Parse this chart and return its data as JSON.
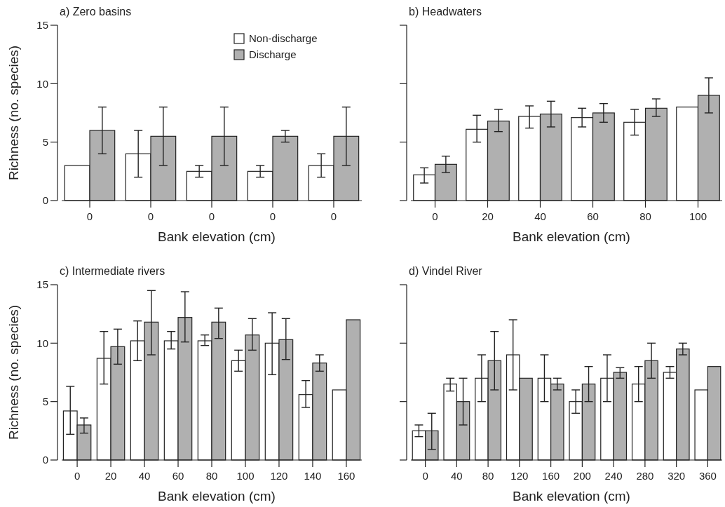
{
  "chart_data": [
    {
      "type": "bar",
      "title": "a) Zero basins",
      "xlabel": "Bank elevation (cm)",
      "ylabel": "Richness (no. species)",
      "categories": [
        "0",
        "0",
        "0",
        "0",
        "0"
      ],
      "ylim": [
        0,
        15
      ],
      "yticks": [
        0,
        5,
        10,
        15
      ],
      "legend": "top",
      "series": [
        {
          "name": "Non-discharge",
          "color": "#ffffff",
          "values": [
            3,
            4,
            2.5,
            2.5,
            3
          ],
          "errors": [
            null,
            [
              2,
              6
            ],
            [
              2,
              3
            ],
            [
              2,
              3
            ],
            [
              2,
              4
            ]
          ]
        },
        {
          "name": "Discharge",
          "color": "#b0b0b0",
          "values": [
            6,
            5.5,
            5.5,
            5.5,
            5.5
          ],
          "errors": [
            [
              4,
              8
            ],
            [
              3,
              8
            ],
            [
              3,
              8
            ],
            [
              5,
              6
            ],
            [
              3,
              8
            ]
          ]
        }
      ]
    },
    {
      "type": "bar",
      "title": "b) Headwaters",
      "xlabel": "Bank elevation (cm)",
      "categories": [
        "0",
        "20",
        "40",
        "60",
        "80",
        "100"
      ],
      "ylim": [
        0,
        15
      ],
      "yticks": [
        0,
        5,
        10,
        15
      ],
      "tick_labels": "x",
      "series": [
        {
          "color": "#ffffff",
          "values": [
            2.2,
            6.1,
            7.2,
            7.1,
            6.7,
            8
          ],
          "errors": [
            [
              1.5,
              2.8
            ],
            [
              5,
              7.3
            ],
            [
              6.2,
              8.1
            ],
            [
              6.3,
              7.9
            ],
            [
              5.6,
              7.8
            ],
            null
          ]
        },
        {
          "color": "#b0b0b0",
          "values": [
            3.1,
            6.8,
            7.4,
            7.5,
            7.9,
            9
          ],
          "errors": [
            [
              2.4,
              3.8
            ],
            [
              5.9,
              7.8
            ],
            [
              6.3,
              8.5
            ],
            [
              6.7,
              8.3
            ],
            [
              7.2,
              8.7
            ],
            [
              7.5,
              10.5
            ]
          ]
        }
      ]
    },
    {
      "type": "bar",
      "title": "c) Intermediate rivers",
      "xlabel": "Bank elevation (cm)",
      "ylabel": "Richness (no. species)",
      "categories": [
        "0",
        "20",
        "40",
        "60",
        "80",
        "100",
        "120",
        "140",
        "160"
      ],
      "ylim": [
        0,
        15
      ],
      "yticks": [
        0,
        5,
        10,
        15
      ],
      "series": [
        {
          "color": "#ffffff",
          "values": [
            4.2,
            8.7,
            10.2,
            10.2,
            10.2,
            8.5,
            10,
            5.6,
            6
          ],
          "errors": [
            [
              2.2,
              6.3
            ],
            [
              6.5,
              11
            ],
            [
              8.5,
              11.9
            ],
            [
              9.5,
              11
            ],
            [
              9.8,
              10.7
            ],
            [
              7.6,
              9.4
            ],
            [
              7.3,
              12.6
            ],
            [
              4.5,
              6.8
            ],
            null
          ]
        },
        {
          "color": "#b0b0b0",
          "values": [
            3,
            9.7,
            11.8,
            12.2,
            11.8,
            10.7,
            10.3,
            8.3,
            12
          ],
          "errors": [
            [
              2.3,
              3.6
            ],
            [
              8.2,
              11.2
            ],
            [
              9,
              14.5
            ],
            [
              10.1,
              14.4
            ],
            [
              10.4,
              13
            ],
            [
              9.4,
              12.1
            ],
            [
              8.6,
              12.1
            ],
            [
              7.6,
              9
            ],
            null
          ]
        }
      ]
    },
    {
      "type": "bar",
      "title": "d) Vindel River",
      "xlabel": "Bank elevation (cm)",
      "categories": [
        "0",
        "40",
        "80",
        "120",
        "160",
        "200",
        "240",
        "280",
        "320",
        "360"
      ],
      "ylim": [
        0,
        15
      ],
      "yticks": [
        0,
        5,
        10,
        15
      ],
      "tick_labels": "x",
      "series": [
        {
          "color": "#ffffff",
          "values": [
            2.5,
            6.5,
            7,
            9,
            7,
            5,
            7,
            6.5,
            7.5,
            6
          ],
          "errors": [
            [
              2,
              3
            ],
            [
              5.9,
              7
            ],
            [
              5,
              9
            ],
            [
              6,
              12
            ],
            [
              5,
              9
            ],
            [
              4,
              6
            ],
            [
              5,
              9
            ],
            [
              5,
              8
            ],
            [
              7,
              8
            ],
            null
          ]
        },
        {
          "color": "#b0b0b0",
          "values": [
            2.5,
            5,
            8.5,
            7,
            6.5,
            6.5,
            7.5,
            8.5,
            9.5,
            8
          ],
          "errors": [
            [
              0.9,
              4
            ],
            [
              3,
              7
            ],
            [
              6,
              11
            ],
            null,
            [
              6,
              7
            ],
            [
              5,
              8
            ],
            [
              7,
              7.9
            ],
            [
              7,
              10
            ],
            [
              9,
              10
            ],
            null
          ]
        }
      ]
    }
  ]
}
